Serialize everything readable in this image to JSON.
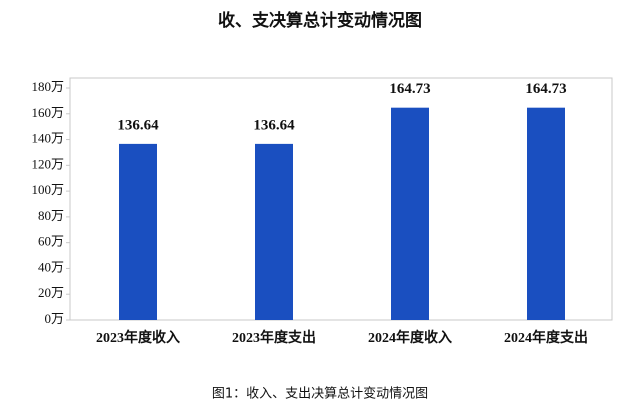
{
  "chart_data": {
    "type": "bar",
    "title": "收、支决算总计变动情况图",
    "categories": [
      "2023年度收入",
      "2023年度支出",
      "2024年度收入",
      "2024年度支出"
    ],
    "values": [
      136.64,
      136.64,
      164.73,
      164.73
    ],
    "color": "#1a4fc0",
    "ylim": [
      0,
      180
    ],
    "yticks": [
      {
        "value": 0,
        "label": "0万"
      },
      {
        "value": 20,
        "label": "20万"
      },
      {
        "value": 40,
        "label": "40万"
      },
      {
        "value": 60,
        "label": "60万"
      },
      {
        "value": 80,
        "label": "80万"
      },
      {
        "value": 100,
        "label": "100万"
      },
      {
        "value": 120,
        "label": "120万"
      },
      {
        "value": 140,
        "label": "140万"
      },
      {
        "value": 160,
        "label": "160万"
      },
      {
        "value": 180,
        "label": "180万"
      }
    ],
    "grid": false,
    "caption": "图1：收入、支出决算总计变动情况图"
  }
}
